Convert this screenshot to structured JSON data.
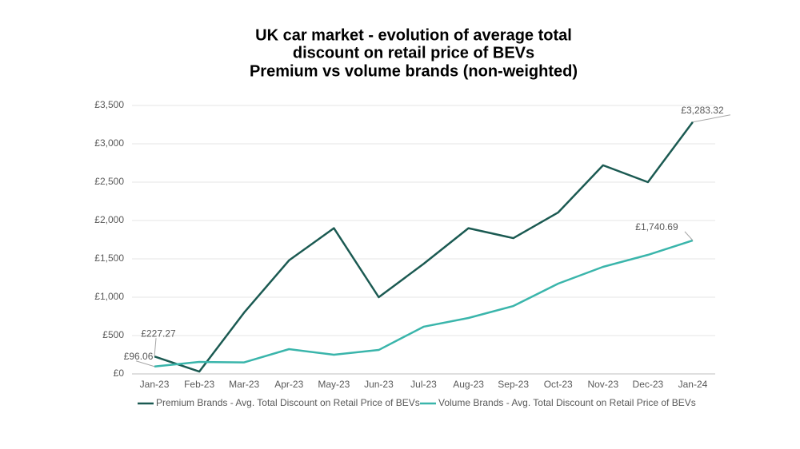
{
  "chart_data": {
    "type": "line",
    "title": [
      "UK car market - evolution of average total",
      "discount on retail price of BEVs",
      "Premium vs volume brands (non-weighted)"
    ],
    "categories": [
      "Jan-23",
      "Feb-23",
      "Mar-23",
      "Apr-23",
      "May-23",
      "Jun-23",
      "Jul-23",
      "Aug-23",
      "Sep-23",
      "Oct-23",
      "Nov-23",
      "Dec-23",
      "Jan-24"
    ],
    "series": [
      {
        "name": "Premium Brands - Avg. Total Discount on Retail Price of BEVs",
        "color": "#1b5a52",
        "values": [
          227.27,
          30,
          800,
          1480,
          1900,
          1000,
          1435,
          1900,
          1770,
          2105,
          2720,
          2500,
          3283.32
        ],
        "value_labels": [
          "£227.27",
          null,
          null,
          null,
          null,
          null,
          null,
          null,
          null,
          null,
          null,
          null,
          "£3,283.32"
        ]
      },
      {
        "name": "Volume Brands - Avg. Total Discount on Retail Price of BEVs",
        "color": "#3ab5ab",
        "values": [
          96.06,
          156,
          150,
          323,
          250,
          312,
          615,
          729,
          885,
          1177,
          1396,
          1552,
          1740.69
        ],
        "value_labels": [
          "£96.06",
          null,
          null,
          null,
          null,
          null,
          null,
          null,
          null,
          null,
          null,
          null,
          "£1,740.69"
        ]
      }
    ],
    "ylim": [
      0,
      3500
    ],
    "yticks": [
      {
        "value": 0,
        "label": "£0"
      },
      {
        "value": 500,
        "label": "£500"
      },
      {
        "value": 1000,
        "label": "£1,000"
      },
      {
        "value": 1500,
        "label": "£1,500"
      },
      {
        "value": 2000,
        "label": "£2,000"
      },
      {
        "value": 2500,
        "label": "£2,500"
      },
      {
        "value": 3000,
        "label": "£3,000"
      },
      {
        "value": 3500,
        "label": "£3,500"
      }
    ],
    "grid": true,
    "legend": "bottom"
  }
}
